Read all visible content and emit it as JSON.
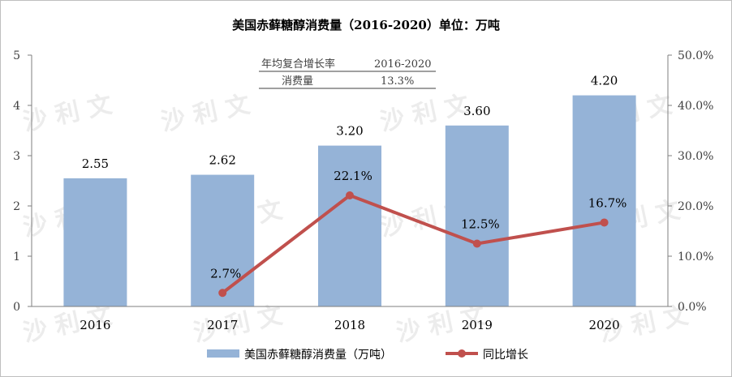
{
  "chart_data": {
    "type": "bar",
    "title": "美国赤藓糖醇消费量（2016-2020）单位：万吨",
    "categories": [
      "2016",
      "2017",
      "2018",
      "2019",
      "2020"
    ],
    "series": [
      {
        "name": "美国赤藓糖醇消费量（万吨）",
        "type": "bar",
        "axis": "left",
        "values": [
          2.55,
          2.62,
          3.2,
          3.6,
          4.2
        ],
        "labels": [
          "2.55",
          "2.62",
          "3.20",
          "3.60",
          "4.20"
        ],
        "color": "#95b3d7"
      },
      {
        "name": "同比增长",
        "type": "line",
        "axis": "right",
        "x": [
          "2017",
          "2018",
          "2019",
          "2020"
        ],
        "values": [
          2.7,
          22.1,
          12.5,
          16.7
        ],
        "labels": [
          "2.7%",
          "22.1%",
          "12.5%",
          "16.7%"
        ],
        "color": "#c0504d"
      }
    ],
    "ylim_left": [
      0,
      5
    ],
    "yticks_left": [
      "0",
      "1",
      "2",
      "3",
      "4",
      "5"
    ],
    "ylim_right": [
      0,
      50
    ],
    "yticks_right": [
      "0.0%",
      "10.0%",
      "20.0%",
      "30.0%",
      "40.0%",
      "50.0%"
    ],
    "grid": false,
    "legend_position": "bottom",
    "cagr_table": {
      "header": [
        "年均复合增长率",
        "2016-2020"
      ],
      "row": [
        "消费量",
        "13.3%"
      ]
    },
    "watermark": "沙 利 文"
  }
}
